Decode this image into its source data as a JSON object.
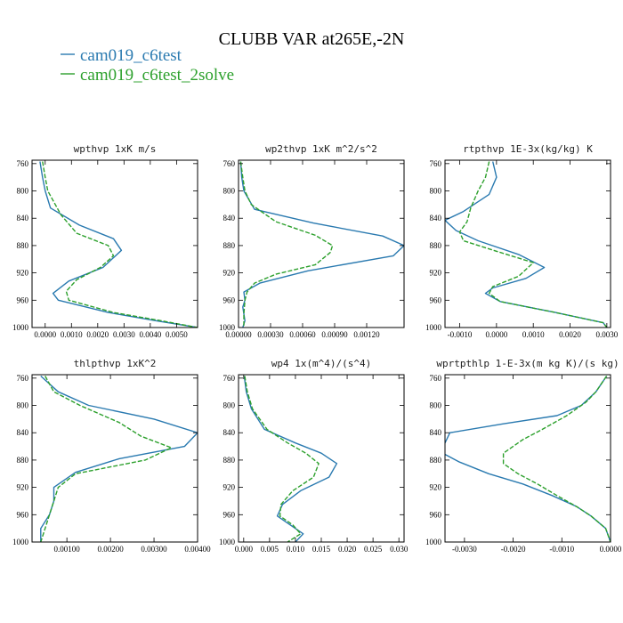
{
  "figure": {
    "title": "CLUBB VAR at265E,-2N",
    "legend": [
      {
        "label": "cam019_c6test",
        "color": "#2a7ab0",
        "dash": "solid"
      },
      {
        "label": "cam019_c6test_2solve",
        "color": "#2ca02c",
        "dash": "dashed"
      }
    ]
  },
  "chart_data": [
    {
      "type": "line",
      "title": "wpthvp  1xK m/s",
      "xlim": [
        -0.0005,
        0.0058
      ],
      "ylim": [
        1000,
        755
      ],
      "xticks": [
        0,
        0.001,
        0.002,
        0.003,
        0.004,
        0.005
      ],
      "xtick_labels": [
        "0.0000",
        "0.0010",
        "0.0020",
        "0.0030",
        "0.0040",
        "0.0050"
      ],
      "yticks": [
        760,
        800,
        840,
        880,
        920,
        960,
        1000
      ],
      "ytick_labels": [
        "760",
        "800",
        "840",
        "880",
        "920",
        "960",
        "1000"
      ],
      "series": [
        {
          "name": "cam019_c6test",
          "values": [
            [
              -0.0002,
              757
            ],
            [
              -0.0001,
              780
            ],
            [
              0,
              800
            ],
            [
              0.0002,
              825
            ],
            [
              0.0013,
              850
            ],
            [
              0.0026,
              870
            ],
            [
              0.0029,
              887
            ],
            [
              0.0022,
              912
            ],
            [
              0.0009,
              932
            ],
            [
              0.0003,
              950
            ],
            [
              0.0005,
              960
            ],
            [
              0.0024,
              978
            ],
            [
              0.0042,
              990
            ],
            [
              0.0058,
              1000
            ]
          ]
        },
        {
          "name": "cam019_c6test_2solve",
          "values": [
            [
              -0.0001,
              757
            ],
            [
              0,
              780
            ],
            [
              0.0001,
              800
            ],
            [
              0.0006,
              835
            ],
            [
              0.0012,
              862
            ],
            [
              0.0024,
              880
            ],
            [
              0.0026,
              895
            ],
            [
              0.0021,
              912
            ],
            [
              0.0012,
              930
            ],
            [
              0.0008,
              947
            ],
            [
              0.0009,
              960
            ],
            [
              0.0026,
              978
            ],
            [
              0.0044,
              990
            ],
            [
              0.0058,
              1000
            ]
          ]
        }
      ]
    },
    {
      "type": "line",
      "title": "wp2thvp  1xK m^2/s^2",
      "xlim": [
        0,
        0.00155
      ],
      "ylim": [
        1000,
        755
      ],
      "xticks": [
        0,
        0.0003,
        0.0006,
        0.0009,
        0.0012
      ],
      "xtick_labels": [
        "0.00000",
        "0.00030",
        "0.00060",
        "0.00090",
        "0.00120"
      ],
      "yticks": [
        760,
        800,
        840,
        880,
        920,
        960,
        1000
      ],
      "ytick_labels": [
        "760",
        "800",
        "840",
        "880",
        "920",
        "960",
        "1000"
      ],
      "series": [
        {
          "name": "cam019_c6test",
          "values": [
            [
              2e-05,
              757
            ],
            [
              3e-05,
              780
            ],
            [
              5e-05,
              800
            ],
            [
              0.00015,
              827
            ],
            [
              0.0007,
              847
            ],
            [
              0.00135,
              866
            ],
            [
              0.00155,
              880
            ],
            [
              0.00145,
              895
            ],
            [
              0.00065,
              917
            ],
            [
              0.0002,
              935
            ],
            [
              5e-05,
              948
            ],
            [
              6e-05,
              960
            ],
            [
              4e-05,
              970
            ],
            [
              6e-05,
              990
            ],
            [
              4e-05,
              1000
            ]
          ]
        },
        {
          "name": "cam019_c6test_2solve",
          "values": [
            [
              2e-05,
              757
            ],
            [
              4e-05,
              780
            ],
            [
              6e-05,
              800
            ],
            [
              0.00012,
              820
            ],
            [
              0.00035,
              845
            ],
            [
              0.00072,
              865
            ],
            [
              0.00088,
              880
            ],
            [
              0.00086,
              890
            ],
            [
              0.00072,
              908
            ],
            [
              0.00035,
              922
            ],
            [
              0.00015,
              935
            ],
            [
              8e-05,
              948
            ],
            [
              6e-05,
              960
            ],
            [
              5e-05,
              980
            ],
            [
              5e-05,
              1000
            ]
          ]
        }
      ]
    },
    {
      "type": "line",
      "title": "rtpthvp  1E-3x(kg/kg) K",
      "xlim": [
        -0.0014,
        0.0031
      ],
      "ylim": [
        1000,
        755
      ],
      "xticks": [
        -0.001,
        0,
        0.001,
        0.002,
        0.003
      ],
      "xtick_labels": [
        "-0.0010",
        "0.0000",
        "0.0010",
        "0.0020",
        "0.0030"
      ],
      "yticks": [
        760,
        800,
        840,
        880,
        920,
        960,
        1000
      ],
      "ytick_labels": [
        "760",
        "800",
        "840",
        "880",
        "920",
        "960",
        "1000"
      ],
      "series": [
        {
          "name": "cam019_c6test",
          "values": [
            [
              -0.0001,
              757
            ],
            [
              0,
              780
            ],
            [
              -0.0002,
              805
            ],
            [
              -0.0009,
              830
            ],
            [
              -0.0014,
              843
            ],
            [
              -0.0011,
              858
            ],
            [
              -0.0005,
              873
            ],
            [
              0.0006,
              893
            ],
            [
              0.0013,
              912
            ],
            [
              0.0008,
              928
            ],
            [
              -0.0001,
              942
            ],
            [
              -0.0003,
              950
            ],
            [
              0.0001,
              962
            ],
            [
              0.0016,
              978
            ],
            [
              0.0029,
              993
            ],
            [
              0.003,
              1000
            ]
          ]
        },
        {
          "name": "cam019_c6test_2solve",
          "values": [
            [
              -0.0002,
              757
            ],
            [
              -0.0003,
              780
            ],
            [
              -0.0005,
              800
            ],
            [
              -0.0007,
              825
            ],
            [
              -0.0008,
              845
            ],
            [
              -0.001,
              860
            ],
            [
              -0.0009,
              873
            ],
            [
              0.0001,
              890
            ],
            [
              0.001,
              905
            ],
            [
              0.0006,
              925
            ],
            [
              -0.0001,
              940
            ],
            [
              -0.0002,
              950
            ],
            [
              0.0001,
              962
            ],
            [
              0.0016,
              978
            ],
            [
              0.0029,
              993
            ],
            [
              0.003,
              1000
            ]
          ]
        }
      ]
    },
    {
      "type": "line",
      "title": "thlpthvp  1xK^2",
      "xlim": [
        0.0002,
        0.004
      ],
      "ylim": [
        1000,
        755
      ],
      "xticks": [
        0.001,
        0.002,
        0.003,
        0.004
      ],
      "xtick_labels": [
        "0.00100",
        "0.00200",
        "0.00300",
        "0.00400"
      ],
      "yticks": [
        760,
        800,
        840,
        880,
        920,
        960,
        1000
      ],
      "ytick_labels": [
        "760",
        "800",
        "840",
        "880",
        "920",
        "960",
        "1000"
      ],
      "series": [
        {
          "name": "cam019_c6test",
          "values": [
            [
              0.0004,
              757
            ],
            [
              0.0008,
              780
            ],
            [
              0.0015,
              800
            ],
            [
              0.003,
              820
            ],
            [
              0.004,
              840
            ],
            [
              0.0037,
              860
            ],
            [
              0.0022,
              878
            ],
            [
              0.0012,
              898
            ],
            [
              0.0007,
              920
            ],
            [
              0.0007,
              940
            ],
            [
              0.0006,
              960
            ],
            [
              0.0004,
              980
            ],
            [
              0.0004,
              1000
            ]
          ]
        },
        {
          "name": "cam019_c6test_2solve",
          "values": [
            [
              0.0005,
              757
            ],
            [
              0.0007,
              780
            ],
            [
              0.0013,
              800
            ],
            [
              0.0022,
              825
            ],
            [
              0.0027,
              845
            ],
            [
              0.0034,
              862
            ],
            [
              0.0028,
              880
            ],
            [
              0.0012,
              900
            ],
            [
              0.0008,
              920
            ],
            [
              0.0007,
              940
            ],
            [
              0.0006,
              960
            ],
            [
              0.0005,
              980
            ],
            [
              0.0004,
              1000
            ]
          ]
        }
      ]
    },
    {
      "type": "line",
      "title": "wp4  1x(m^4)/(s^4)",
      "xlim": [
        -0.001,
        0.031
      ],
      "ylim": [
        1000,
        755
      ],
      "xticks": [
        0,
        0.005,
        0.01,
        0.015,
        0.02,
        0.025,
        0.03
      ],
      "xtick_labels": [
        "0.000",
        "0.005",
        "0.010",
        "0.015",
        "0.020",
        "0.025",
        "0.030"
      ],
      "yticks": [
        760,
        800,
        840,
        880,
        920,
        960,
        1000
      ],
      "ytick_labels": [
        "760",
        "800",
        "840",
        "880",
        "920",
        "960",
        "1000"
      ],
      "series": [
        {
          "name": "cam019_c6test",
          "values": [
            [
              0.0001,
              757
            ],
            [
              0.0005,
              780
            ],
            [
              0.0015,
              805
            ],
            [
              0.004,
              835
            ],
            [
              0.01,
              855
            ],
            [
              0.015,
              870
            ],
            [
              0.018,
              885
            ],
            [
              0.0165,
              905
            ],
            [
              0.011,
              925
            ],
            [
              0.0075,
              945
            ],
            [
              0.0065,
              962
            ],
            [
              0.009,
              975
            ],
            [
              0.0115,
              988
            ],
            [
              0.01,
              1000
            ]
          ]
        },
        {
          "name": "cam019_c6test_2solve",
          "values": [
            [
              0.0002,
              757
            ],
            [
              0.0007,
              780
            ],
            [
              0.0017,
              805
            ],
            [
              0.0045,
              835
            ],
            [
              0.0085,
              855
            ],
            [
              0.012,
              870
            ],
            [
              0.0145,
              885
            ],
            [
              0.0135,
              905
            ],
            [
              0.0095,
              925
            ],
            [
              0.0072,
              945
            ],
            [
              0.007,
              962
            ],
            [
              0.0095,
              975
            ],
            [
              0.011,
              988
            ],
            [
              0.0085,
              1000
            ]
          ]
        }
      ]
    },
    {
      "type": "line",
      "title": "wprtpthlp  1-E-3x(m kg K)/(s kg)",
      "xlim": [
        -0.0034,
        0
      ],
      "ylim": [
        1000,
        755
      ],
      "xticks": [
        -0.003,
        -0.002,
        -0.001,
        0
      ],
      "xtick_labels": [
        "-0.0030",
        "-0.0020",
        "-0.0010",
        "0.0000"
      ],
      "yticks": [
        760,
        800,
        840,
        880,
        920,
        960,
        1000
      ],
      "ytick_labels": [
        "760",
        "800",
        "840",
        "880",
        "920",
        "960",
        "1000"
      ],
      "series": [
        {
          "name": "cam019_c6test",
          "values": [
            [
              -8e-05,
              757
            ],
            [
              -0.0003,
              780
            ],
            [
              -0.0006,
              800
            ],
            [
              -0.0011,
              815
            ],
            [
              -0.0022,
              827
            ],
            [
              -0.0033,
              840
            ],
            [
              -0.0034,
              855
            ],
            [
              -0.0035,
              868
            ],
            [
              -0.0031,
              883
            ],
            [
              -0.0025,
              900
            ],
            [
              -0.0018,
              915
            ],
            [
              -0.0012,
              932
            ],
            [
              -0.0007,
              948
            ],
            [
              -0.0004,
              962
            ],
            [
              -0.0001,
              980
            ],
            [
              0,
              1000
            ]
          ]
        },
        {
          "name": "cam019_c6test_2solve",
          "values": [
            [
              -8e-05,
              757
            ],
            [
              -0.0003,
              780
            ],
            [
              -0.0005,
              795
            ],
            [
              -0.0009,
              815
            ],
            [
              -0.0014,
              835
            ],
            [
              -0.0018,
              850
            ],
            [
              -0.0022,
              870
            ],
            [
              -0.0022,
              885
            ],
            [
              -0.0019,
              900
            ],
            [
              -0.0015,
              915
            ],
            [
              -0.0011,
              932
            ],
            [
              -0.0007,
              948
            ],
            [
              -0.0004,
              962
            ],
            [
              -0.0001,
              980
            ],
            [
              0,
              1000
            ]
          ]
        }
      ]
    }
  ]
}
